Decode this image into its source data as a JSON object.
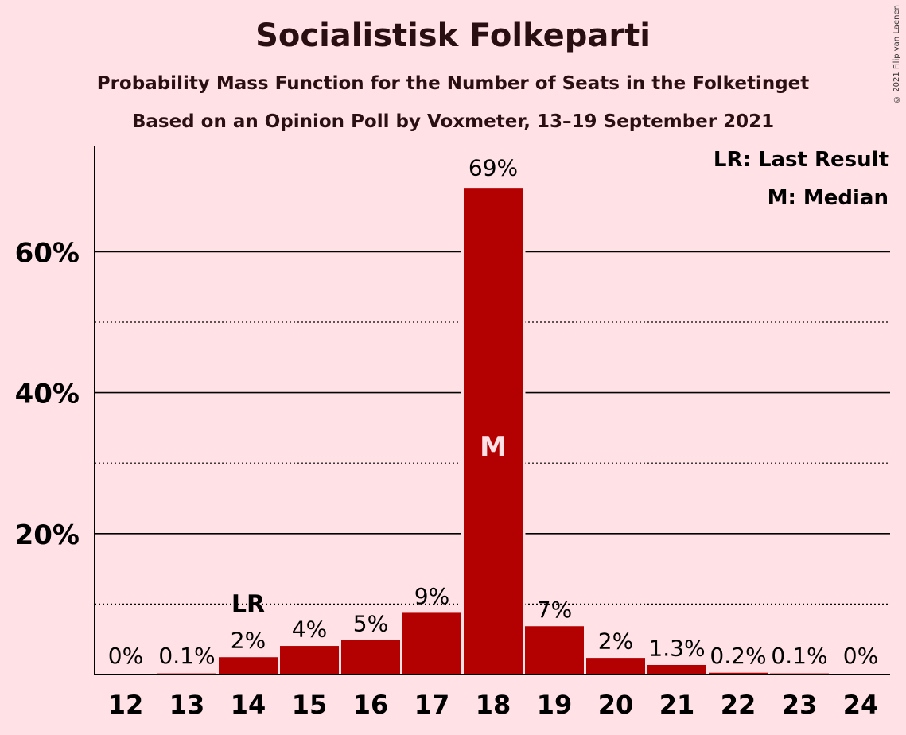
{
  "chart_data": {
    "type": "bar",
    "title": "Socialistisk Folkeparti",
    "subtitle": "Probability Mass Function for the Number of Seats in the Folketinget",
    "subtitle2": "Based on an Opinion Poll by Voxmeter, 13–19 September 2021",
    "copyright": "© 2021 Filip van Laenen",
    "categories": [
      "12",
      "13",
      "14",
      "15",
      "16",
      "17",
      "18",
      "19",
      "20",
      "21",
      "22",
      "23",
      "24"
    ],
    "values": [
      0,
      0.1,
      2.4,
      4.0,
      4.8,
      8.7,
      69,
      6.8,
      2.3,
      1.3,
      0.2,
      0.1,
      0
    ],
    "data_labels": [
      "0%",
      "0.1%",
      "2%",
      "4%",
      "5%",
      "9%",
      "69%",
      "7%",
      "2%",
      "1.3%",
      "0.2%",
      "0.1%",
      "0%"
    ],
    "y_ticks": [
      20,
      40,
      60
    ],
    "y_tick_labels": [
      "20%",
      "40%",
      "60%"
    ],
    "y_minor_ticks": [
      10,
      30,
      50
    ],
    "ylim": [
      0,
      75
    ],
    "bar_color": "#B30000",
    "last_result": {
      "category": "14",
      "label": "LR"
    },
    "median": {
      "category": "18",
      "label": "M"
    },
    "legend": {
      "position": "top-right",
      "items": [
        "LR: Last Result",
        "M: Median"
      ]
    }
  }
}
